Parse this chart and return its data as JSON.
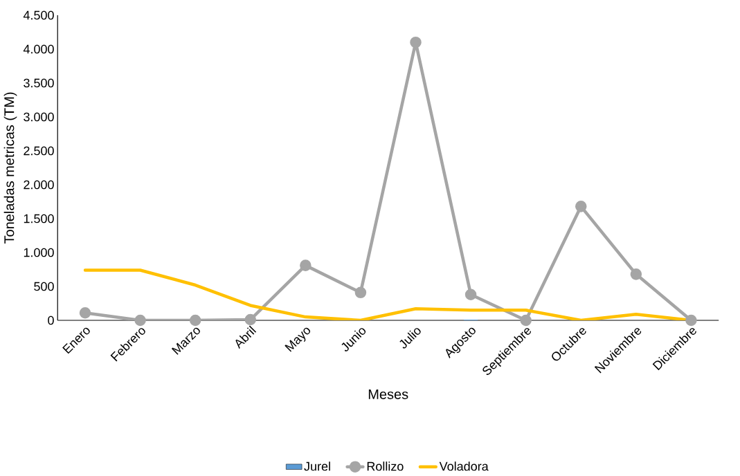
{
  "chart_data": {
    "type": "line",
    "xlabel": "Meses",
    "ylabel": "Toneladas metricas (TM)",
    "categories": [
      "Enero",
      "Febrero",
      "Marzo",
      "Abril",
      "Mayo",
      "Junio",
      "Julio",
      "Agosto",
      "Septiembre",
      "Octubre",
      "Noviembre",
      "Diciembre"
    ],
    "series": [
      {
        "name": "Jurel",
        "type": "bar",
        "color": "#5b9bd5",
        "values": [
          0,
          0,
          0,
          0,
          0,
          0,
          0,
          10,
          0,
          0,
          0,
          0
        ]
      },
      {
        "name": "Rollizo",
        "color": "#a5a5a5",
        "marker": "circle",
        "values": [
          110,
          0,
          0,
          10,
          810,
          410,
          4100,
          380,
          0,
          1680,
          680,
          0
        ]
      },
      {
        "name": "Voladora",
        "color": "#ffc000",
        "marker": "none",
        "values": [
          740,
          740,
          520,
          220,
          50,
          0,
          170,
          150,
          150,
          0,
          90,
          0
        ]
      }
    ],
    "ylim": [
      0,
      4500
    ],
    "yticks": [
      0,
      500,
      {
        "value": 1000,
        "label": "1.000"
      },
      {
        "value": 1500,
        "label": "1.500"
      },
      {
        "value": 2000,
        "label": "2.000"
      },
      {
        "value": 2500,
        "label": "2.500"
      },
      {
        "value": 3000,
        "label": "3.000"
      },
      {
        "value": 3500,
        "label": "3.500"
      },
      {
        "value": 4000,
        "label": "4.000"
      },
      {
        "value": 4500,
        "label": "4.500"
      }
    ],
    "grid": false,
    "legend": "bottom"
  }
}
